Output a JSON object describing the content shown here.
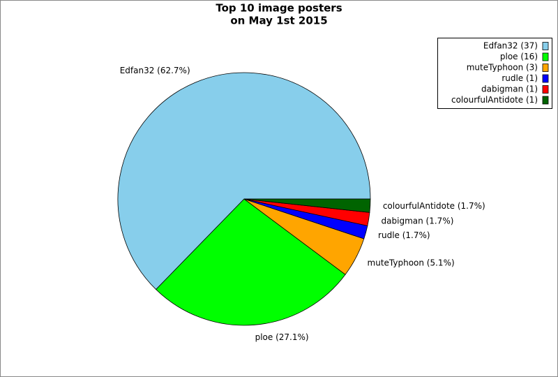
{
  "chart_data": {
    "type": "pie",
    "title": [
      "Top 10 image posters",
      "on May 1st 2015"
    ],
    "categories": [
      "Edfan32 (37)",
      "ploe (16)",
      "muteTyphoon (3)",
      "rudle (1)",
      "dabigman (1)",
      "colourfulAntidote (1)"
    ],
    "values": [
      62.7,
      27.1,
      5.1,
      1.7,
      1.7,
      1.7
    ],
    "value_labels": [
      "Edfan32 (62.7%)",
      "ploe (27.1%)",
      "muteTyphoon (5.1%)",
      "rudle (1.7%)",
      "dabigman (1.7%)",
      "colourfulAntidote (1.7%)"
    ],
    "colors": [
      "#87ceeb",
      "#00ff00",
      "#ffa500",
      "#0000ff",
      "#ff0000",
      "#006400"
    ],
    "legend": "upper right"
  }
}
